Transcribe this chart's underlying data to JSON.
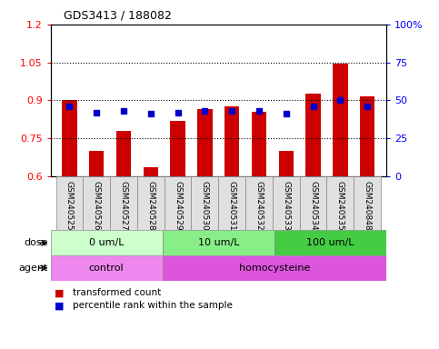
{
  "title": "GDS3413 / 188082",
  "samples": [
    "GSM240525",
    "GSM240526",
    "GSM240527",
    "GSM240528",
    "GSM240529",
    "GSM240530",
    "GSM240531",
    "GSM240532",
    "GSM240533",
    "GSM240534",
    "GSM240535",
    "GSM240848"
  ],
  "transformed_count": [
    0.9,
    0.7,
    0.78,
    0.635,
    0.82,
    0.865,
    0.875,
    0.855,
    0.7,
    0.925,
    1.045,
    0.915
  ],
  "percentile_rank_pct": [
    46,
    42,
    43,
    41,
    42,
    43,
    43,
    43,
    41,
    46,
    50,
    46
  ],
  "ylim_left": [
    0.6,
    1.2
  ],
  "ylim_right": [
    0,
    100
  ],
  "yticks_left": [
    0.6,
    0.75,
    0.9,
    1.05,
    1.2
  ],
  "yticks_right": [
    0,
    25,
    50,
    75,
    100
  ],
  "hlines": [
    0.75,
    0.9,
    1.05
  ],
  "bar_color": "#cc0000",
  "dot_color": "#0000cc",
  "dose_groups": [
    {
      "label": "0 um/L",
      "start": 0,
      "end": 4,
      "color": "#ccffcc"
    },
    {
      "label": "10 um/L",
      "start": 4,
      "end": 8,
      "color": "#88ee88"
    },
    {
      "label": "100 um/L",
      "start": 8,
      "end": 12,
      "color": "#44cc44"
    }
  ],
  "agent_groups": [
    {
      "label": "control",
      "start": 0,
      "end": 4,
      "color": "#ee88ee"
    },
    {
      "label": "homocysteine",
      "start": 4,
      "end": 12,
      "color": "#dd55dd"
    }
  ],
  "dose_label": "dose",
  "agent_label": "agent",
  "legend_bar_label": "transformed count",
  "legend_dot_label": "percentile rank within the sample",
  "bg_color": "#e0e0e0",
  "plot_bg": "#ffffff",
  "border_color": "#888888"
}
